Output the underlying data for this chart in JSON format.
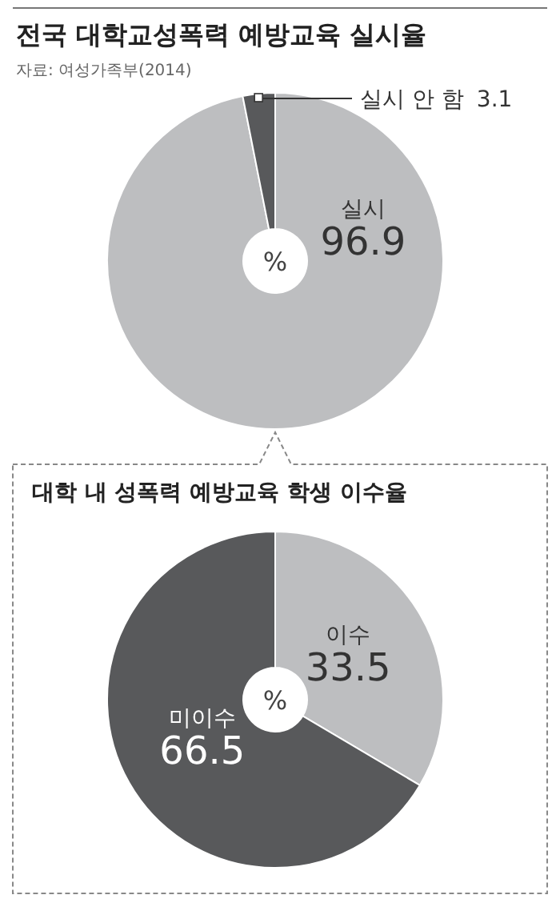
{
  "chart_data": [
    {
      "type": "donut",
      "title": "전국 대학교성폭력 예방교육 실시율",
      "categories": [
        "실시",
        "실시 안 함"
      ],
      "values": [
        96.9,
        3.1
      ],
      "colors": [
        "#bdbec0",
        "#58595b"
      ],
      "data_labels": true,
      "annotations": [
        "자료: 여성가족부(2014)",
        "%"
      ]
    },
    {
      "type": "donut",
      "title": "대학 내 성폭력 예방교육 학생 이수율",
      "categories": [
        "이수",
        "미이수"
      ],
      "values": [
        33.5,
        66.5
      ],
      "colors": [
        "#bdbec0",
        "#58595b"
      ],
      "data_labels": true,
      "annotations": [
        "%"
      ]
    }
  ]
}
